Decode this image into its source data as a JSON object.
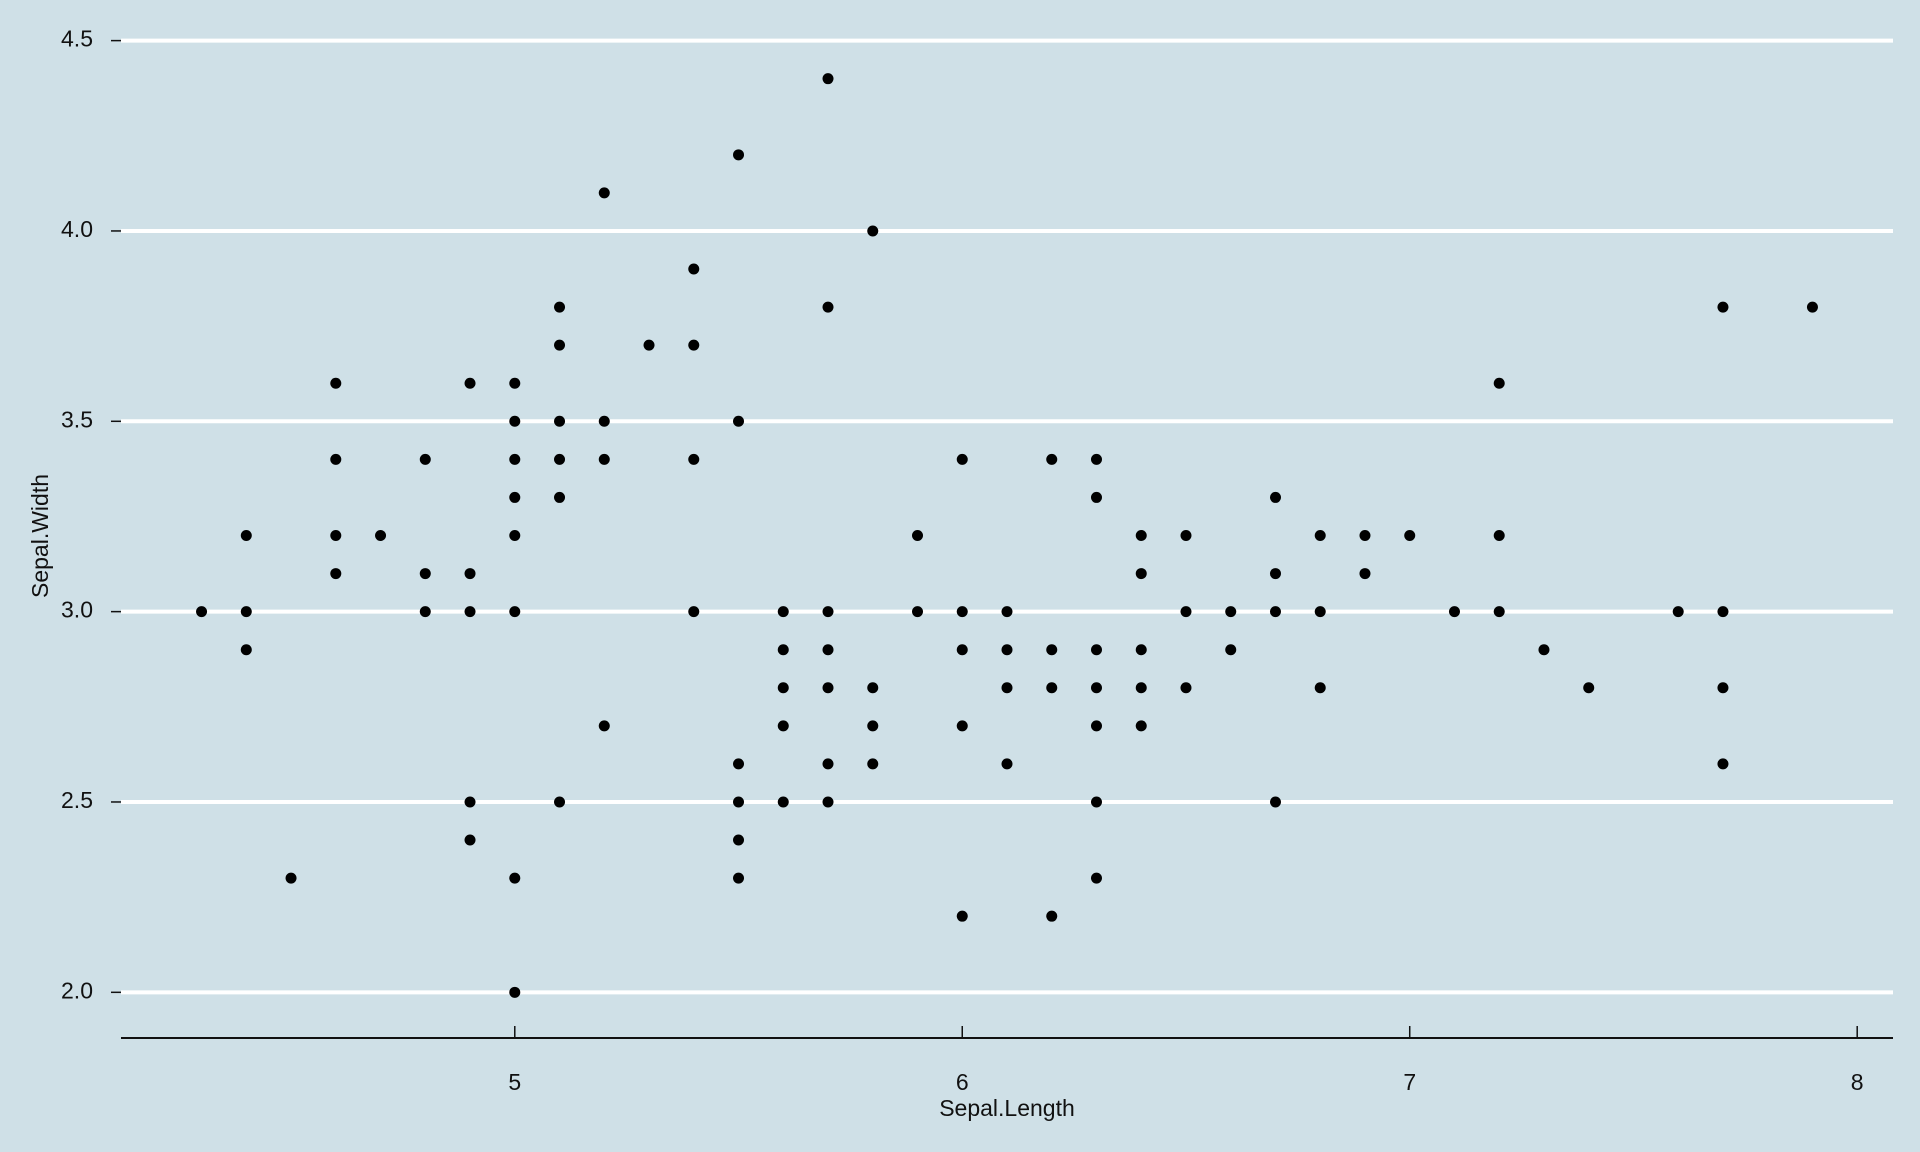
{
  "chart_data": {
    "type": "scatter",
    "x_label": "Sepal.Length",
    "y_label": "Sepal.Width",
    "x": [
      5.7,
      5.5,
      5.2,
      5.8,
      5.4,
      5.1,
      5.7,
      7.7,
      7.9,
      5.1,
      5.3,
      5.4,
      4.6,
      4.9,
      5.0,
      7.2,
      5.0,
      5.1,
      5.2,
      5.5,
      4.6,
      4.8,
      5.0,
      5.1,
      5.2,
      5.4,
      6.0,
      6.2,
      6.3,
      5.0,
      5.1,
      6.3,
      6.7,
      4.4,
      4.6,
      4.7,
      5.0,
      5.9,
      6.4,
      6.5,
      6.8,
      6.9,
      7.0,
      7.2,
      4.6,
      4.8,
      4.9,
      6.4,
      6.7,
      6.9,
      4.3,
      4.4,
      4.8,
      4.9,
      5.0,
      5.4,
      5.6,
      5.7,
      5.9,
      6.0,
      6.1,
      6.5,
      6.6,
      6.7,
      6.8,
      7.1,
      7.2,
      7.6,
      7.7,
      4.4,
      5.6,
      5.7,
      6.0,
      6.1,
      6.2,
      6.3,
      6.4,
      6.6,
      7.3,
      5.6,
      5.7,
      5.8,
      6.1,
      6.2,
      6.3,
      6.4,
      6.5,
      6.8,
      7.4,
      7.7,
      5.2,
      5.6,
      5.8,
      6.0,
      6.3,
      6.4,
      5.5,
      5.7,
      5.8,
      6.1,
      7.7,
      4.9,
      5.1,
      5.5,
      5.6,
      5.7,
      6.3,
      6.7,
      4.9,
      5.5,
      4.5,
      5.0,
      5.5,
      6.3,
      6.0,
      6.2,
      5.0
    ],
    "y": [
      4.4,
      4.2,
      4.1,
      4.0,
      3.9,
      3.8,
      3.8,
      3.8,
      3.8,
      3.7,
      3.7,
      3.7,
      3.6,
      3.6,
      3.6,
      3.6,
      3.5,
      3.5,
      3.5,
      3.5,
      3.4,
      3.4,
      3.4,
      3.4,
      3.4,
      3.4,
      3.4,
      3.4,
      3.4,
      3.3,
      3.3,
      3.3,
      3.3,
      3.2,
      3.2,
      3.2,
      3.2,
      3.2,
      3.2,
      3.2,
      3.2,
      3.2,
      3.2,
      3.2,
      3.1,
      3.1,
      3.1,
      3.1,
      3.1,
      3.1,
      3.0,
      3.0,
      3.0,
      3.0,
      3.0,
      3.0,
      3.0,
      3.0,
      3.0,
      3.0,
      3.0,
      3.0,
      3.0,
      3.0,
      3.0,
      3.0,
      3.0,
      3.0,
      3.0,
      2.9,
      2.9,
      2.9,
      2.9,
      2.9,
      2.9,
      2.9,
      2.9,
      2.9,
      2.9,
      2.8,
      2.8,
      2.8,
      2.8,
      2.8,
      2.8,
      2.8,
      2.8,
      2.8,
      2.8,
      2.8,
      2.7,
      2.7,
      2.7,
      2.7,
      2.7,
      2.7,
      2.6,
      2.6,
      2.6,
      2.6,
      2.6,
      2.5,
      2.5,
      2.5,
      2.5,
      2.5,
      2.5,
      2.5,
      2.4,
      2.4,
      2.3,
      2.3,
      2.3,
      2.3,
      2.2,
      2.2,
      2.0
    ],
    "color": "#000000",
    "xlim": [
      4.12,
      8.08
    ],
    "ylim": [
      1.88,
      4.52
    ],
    "xticks": [
      5,
      6,
      7,
      8
    ],
    "yticks": [
      {
        "value": 2,
        "label": "2.0"
      },
      2.5,
      {
        "value": 3,
        "label": "3.0"
      },
      3.5,
      {
        "value": 4,
        "label": "4.0"
      },
      4.5
    ],
    "grid": true
  }
}
